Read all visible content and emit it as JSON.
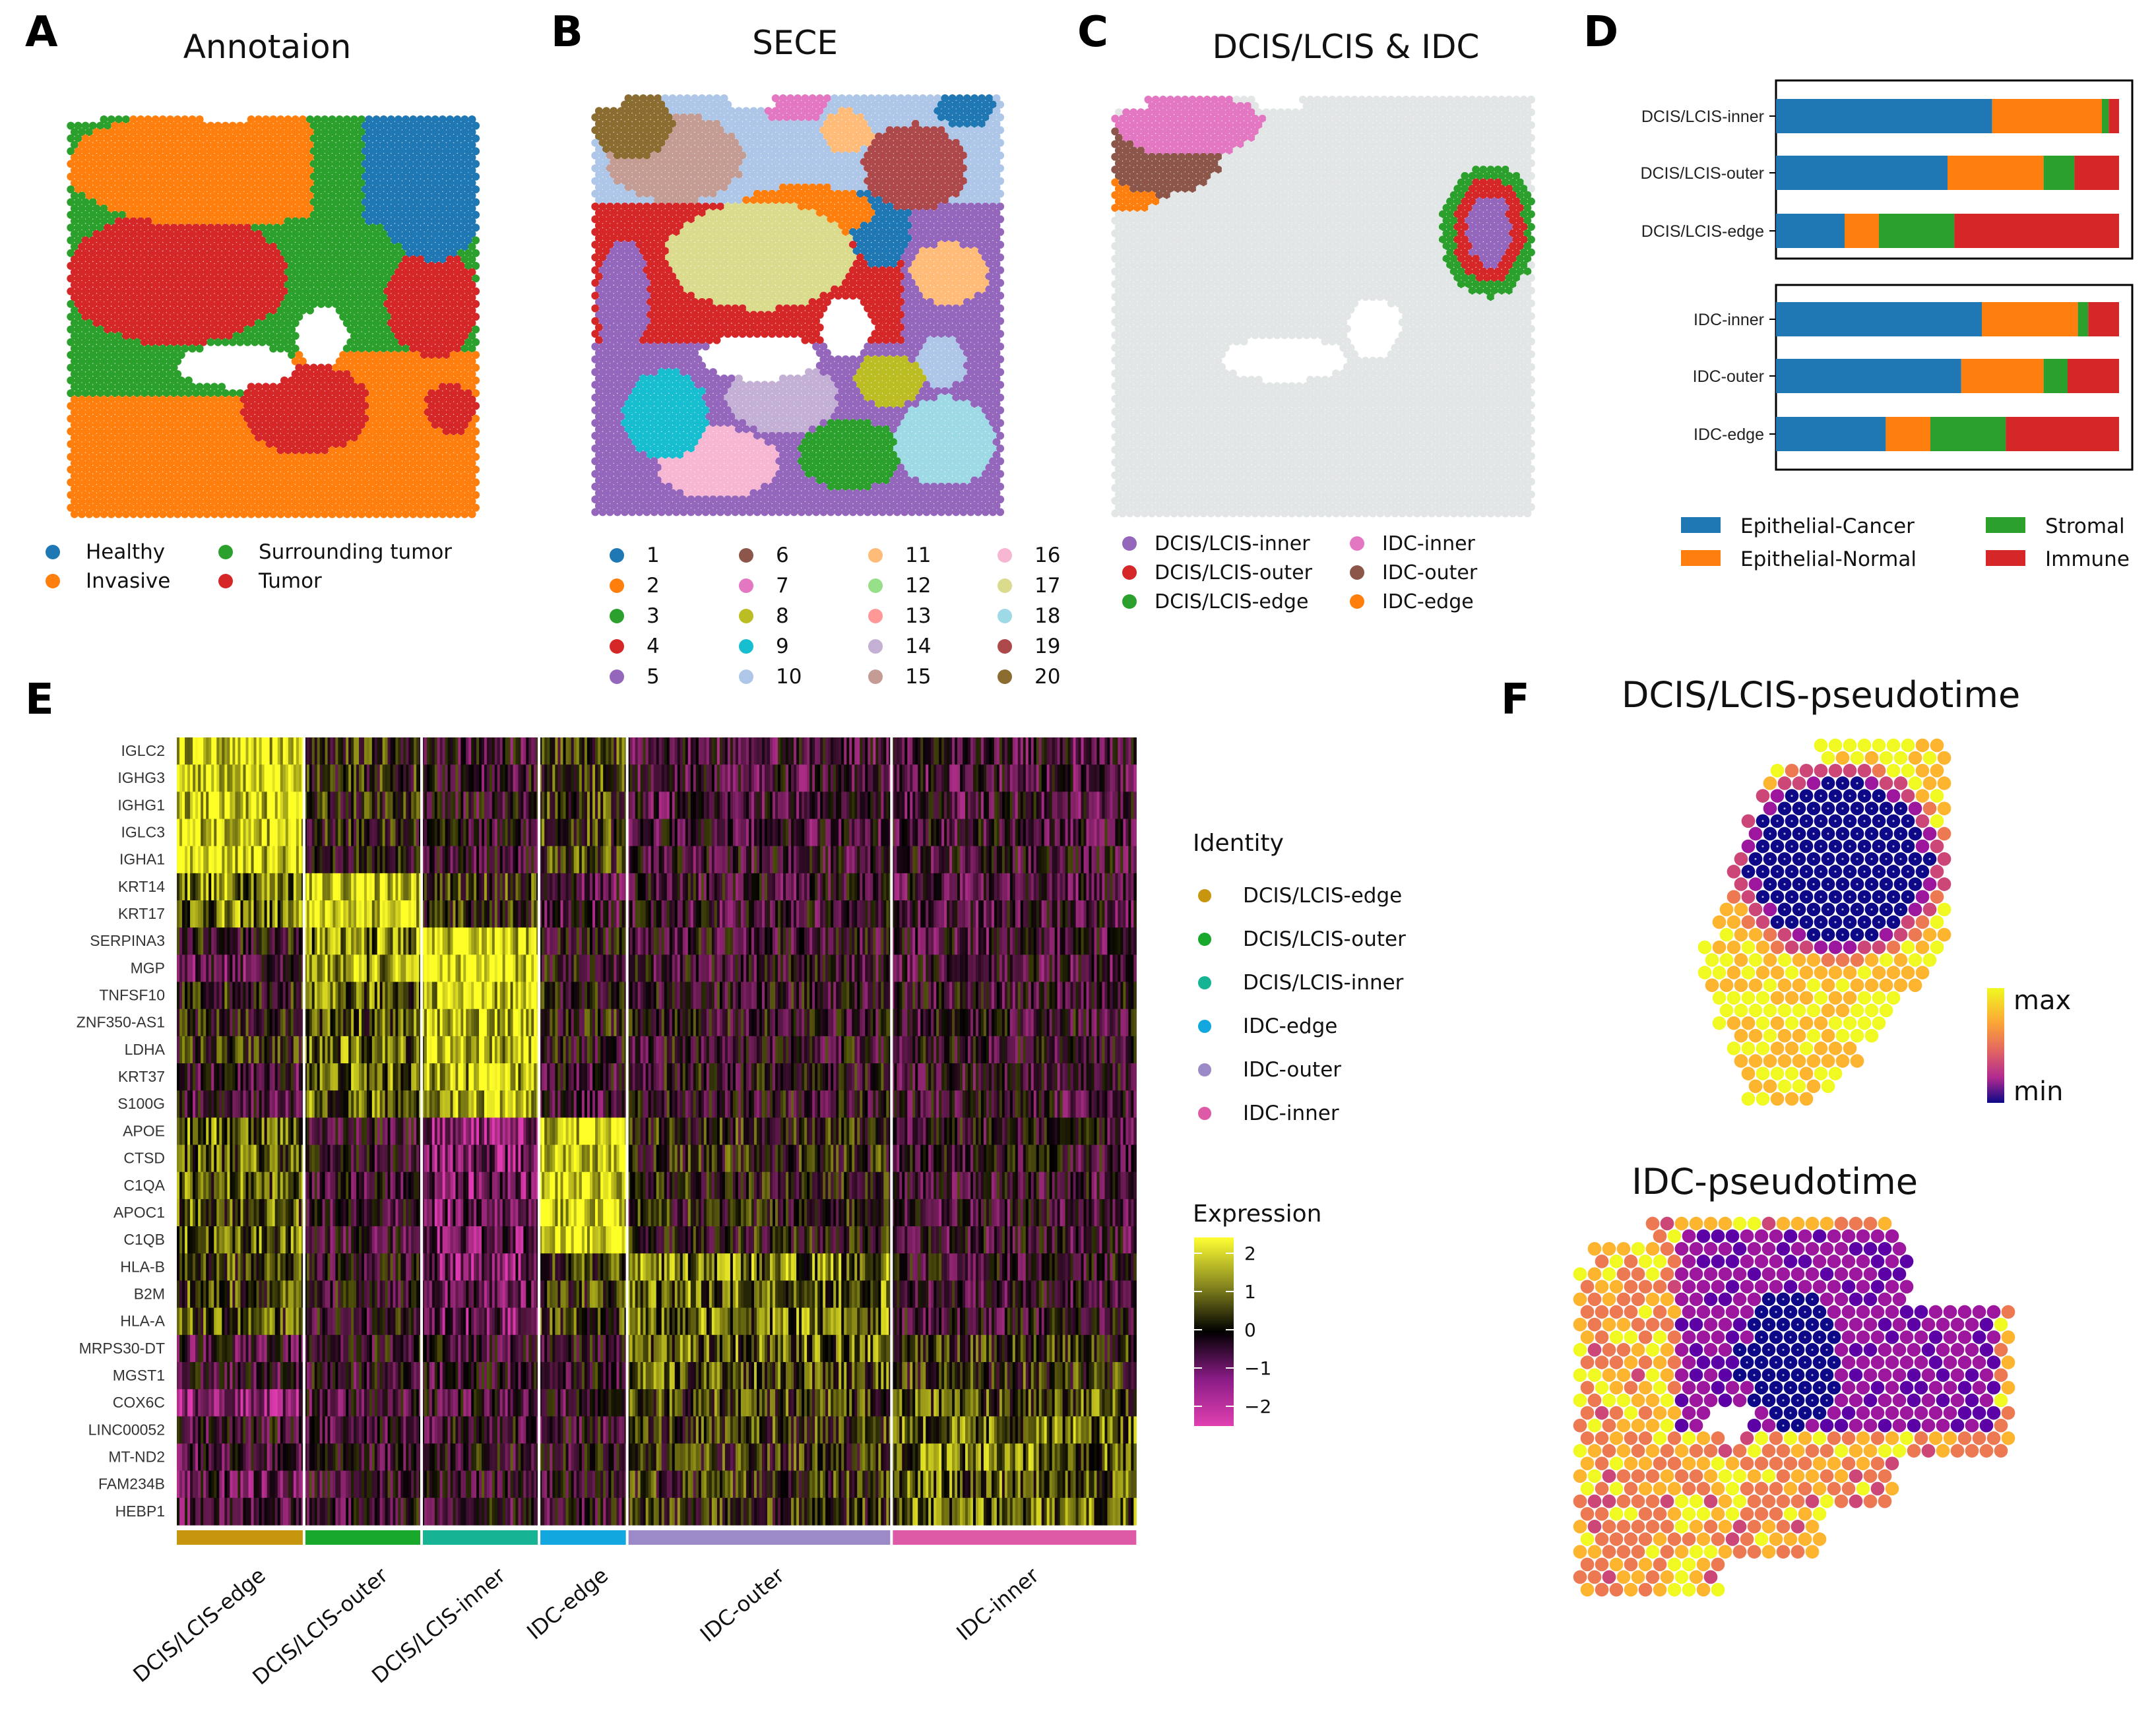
{
  "panels": {
    "A": {
      "label": "A",
      "title": "Annotaion",
      "legend": [
        {
          "name": "Healthy",
          "color": "#1f77b4"
        },
        {
          "name": "Invasive",
          "color": "#ff7f0e"
        },
        {
          "name": "Surrounding tumor",
          "color": "#2ca02c"
        },
        {
          "name": "Tumor",
          "color": "#d62728"
        }
      ]
    },
    "B": {
      "label": "B",
      "title": "SECE",
      "clusters": [
        "1",
        "2",
        "3",
        "4",
        "5",
        "6",
        "7",
        "8",
        "9",
        "10",
        "11",
        "12",
        "13",
        "14",
        "15",
        "16",
        "17",
        "18",
        "19",
        "20"
      ],
      "colors": [
        "#1f77b4",
        "#ff7f0e",
        "#2ca02c",
        "#d62728",
        "#9467bd",
        "#8c564b",
        "#e377c2",
        "#bcbd22",
        "#17becf",
        "#aec7e8",
        "#ffbb78",
        "#98df8a",
        "#ff9896",
        "#c5b0d5",
        "#c49c94",
        "#f7b6d2",
        "#dbdb8d",
        "#9edae5",
        "#ad494a",
        "#8c6d31"
      ]
    },
    "C": {
      "label": "C",
      "title": "DCIS/LCIS & IDC",
      "legend": [
        {
          "name": "DCIS/LCIS-inner",
          "color": "#9467bd"
        },
        {
          "name": "DCIS/LCIS-outer",
          "color": "#d62728"
        },
        {
          "name": "DCIS/LCIS-edge",
          "color": "#2ca02c"
        },
        {
          "name": "IDC-inner",
          "color": "#e377c2"
        },
        {
          "name": "IDC-outer",
          "color": "#8c564b"
        },
        {
          "name": "IDC-edge",
          "color": "#ff7f0e"
        }
      ]
    },
    "D": {
      "label": "D"
    },
    "E": {
      "label": "E"
    },
    "F": {
      "label": "F",
      "title_top": "DCIS/LCIS-pseudotime",
      "title_bottom": "IDC-pseudotime",
      "scale_max": "max",
      "scale_min": "min"
    }
  },
  "chart_data": [
    {
      "type": "bar",
      "subtype": "stacked-horizontal-proportion",
      "panel": "D",
      "groups": [
        {
          "categories": [
            "DCIS/LCIS-inner",
            "DCIS/LCIS-outer",
            "DCIS/LCIS-edge"
          ]
        },
        {
          "categories": [
            "IDC-inner",
            "IDC-outer",
            "IDC-edge"
          ]
        }
      ],
      "series": [
        {
          "name": "Epithelial-Cancer",
          "color": "#1f77b4",
          "values": [
            0.63,
            0.5,
            0.2,
            0.6,
            0.54,
            0.32
          ]
        },
        {
          "name": "Epithelial-Normal",
          "color": "#ff7f0e",
          "values": [
            0.32,
            0.28,
            0.1,
            0.28,
            0.24,
            0.13
          ]
        },
        {
          "name": "Stromal",
          "color": "#2ca02c",
          "values": [
            0.02,
            0.09,
            0.22,
            0.03,
            0.07,
            0.22
          ]
        },
        {
          "name": "Immune",
          "color": "#d62728",
          "values": [
            0.03,
            0.13,
            0.48,
            0.09,
            0.15,
            0.33
          ]
        }
      ],
      "xlim": [
        0,
        1
      ]
    },
    {
      "type": "heatmap",
      "panel": "E",
      "genes": [
        "IGLC2",
        "IGHG3",
        "IGHG1",
        "IGLC3",
        "IGHA1",
        "KRT14",
        "KRT17",
        "SERPINA3",
        "MGP",
        "TNFSF10",
        "ZNF350-AS1",
        "LDHA",
        "KRT37",
        "S100G",
        "APOE",
        "CTSD",
        "C1QA",
        "APOC1",
        "C1QB",
        "HLA-B",
        "B2M",
        "HLA-A",
        "MRPS30-DT",
        "MGST1",
        "COX6C",
        "LINC00052",
        "MT-ND2",
        "FAM234B",
        "HEBP1"
      ],
      "groups": [
        {
          "name": "DCIS/LCIS-edge",
          "color": "#c8950f",
          "size": 0.13
        },
        {
          "name": "DCIS/LCIS-outer",
          "color": "#18a82c",
          "size": 0.12
        },
        {
          "name": "DCIS/LCIS-inner",
          "color": "#16b395",
          "size": 0.12
        },
        {
          "name": "IDC-edge",
          "color": "#12a7df",
          "size": 0.09
        },
        {
          "name": "IDC-outer",
          "color": "#9b8ac7",
          "size": 0.27
        },
        {
          "name": "IDC-inner",
          "color": "#df5aa6",
          "size": 0.25
        }
      ],
      "mean_expression": [
        [
          2.0,
          0.2,
          -0.5,
          0.3,
          -0.6,
          -0.6
        ],
        [
          2.0,
          0.1,
          -0.4,
          0.4,
          -0.6,
          -0.6
        ],
        [
          2.0,
          0.1,
          -0.4,
          0.4,
          -0.6,
          -0.6
        ],
        [
          2.0,
          0.0,
          -0.4,
          0.3,
          -0.6,
          -0.5
        ],
        [
          2.0,
          -0.1,
          -0.4,
          0.4,
          -0.5,
          -0.5
        ],
        [
          1.2,
          2.0,
          0.3,
          -0.6,
          -0.5,
          -0.6
        ],
        [
          1.0,
          2.0,
          0.2,
          -0.6,
          -0.5,
          -0.6
        ],
        [
          -0.2,
          1.2,
          2.0,
          -0.3,
          -0.4,
          -0.6
        ],
        [
          -0.8,
          1.4,
          2.0,
          -0.2,
          -0.4,
          -0.6
        ],
        [
          0.1,
          0.8,
          1.8,
          -0.1,
          -0.3,
          -0.4
        ],
        [
          -0.1,
          0.7,
          1.8,
          0.0,
          -0.3,
          -0.4
        ],
        [
          0.2,
          0.9,
          1.7,
          -0.2,
          -0.3,
          -0.4
        ],
        [
          -0.6,
          0.9,
          1.6,
          -0.5,
          -0.3,
          -0.5
        ],
        [
          -0.5,
          0.8,
          1.7,
          -0.5,
          -0.3,
          -0.5
        ],
        [
          0.9,
          -0.4,
          -1.6,
          2.0,
          0.1,
          -0.4
        ],
        [
          0.8,
          -0.3,
          -1.2,
          2.0,
          0.1,
          -0.4
        ],
        [
          0.8,
          -0.5,
          -1.2,
          2.0,
          0.0,
          -0.5
        ],
        [
          0.7,
          -0.5,
          -1.1,
          2.0,
          0.0,
          -0.5
        ],
        [
          0.8,
          -0.5,
          -1.1,
          2.0,
          0.0,
          -0.5
        ],
        [
          0.5,
          -0.3,
          -1.2,
          0.3,
          1.0,
          -0.4
        ],
        [
          0.5,
          -0.3,
          -1.1,
          0.4,
          0.9,
          -0.4
        ],
        [
          0.5,
          -0.3,
          -1.1,
          0.4,
          0.9,
          -0.4
        ],
        [
          -0.6,
          -0.3,
          -0.5,
          -0.3,
          0.8,
          0.2
        ],
        [
          -0.5,
          -0.4,
          -0.5,
          -0.3,
          0.7,
          0.3
        ],
        [
          -1.6,
          -0.6,
          -0.5,
          -0.5,
          0.4,
          0.6
        ],
        [
          -0.5,
          -0.5,
          -0.4,
          -0.4,
          0.3,
          0.9
        ],
        [
          -0.6,
          -0.5,
          -0.3,
          -0.4,
          0.2,
          0.9
        ],
        [
          -0.8,
          -0.4,
          -0.3,
          -0.4,
          0.2,
          0.8
        ],
        [
          -0.7,
          -0.4,
          -0.4,
          -0.4,
          0.2,
          0.8
        ]
      ],
      "identity_title": "Identity",
      "expression_title": "Expression",
      "color_ticks": [
        "2",
        "1",
        "0",
        "−1",
        "−2"
      ],
      "color_range": [
        -2.3,
        2.3
      ]
    }
  ]
}
